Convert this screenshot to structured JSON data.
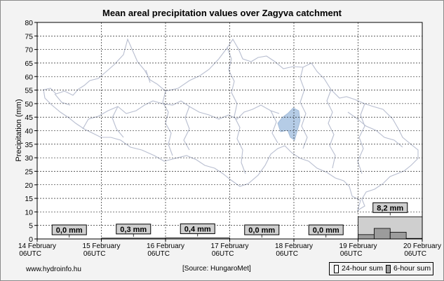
{
  "chart_data": {
    "type": "bar",
    "title": "Mean areal precipitation values over Zagyva catchment",
    "ylabel": "Precipitation (mm)",
    "ylim": [
      0,
      80
    ],
    "yticks": [
      0,
      5,
      10,
      15,
      20,
      25,
      30,
      35,
      40,
      45,
      50,
      55,
      60,
      65,
      70,
      75,
      80
    ],
    "xticks": [
      {
        "line1": "14 February",
        "line2": "06UTC"
      },
      {
        "line1": "15 February",
        "line2": "06UTC"
      },
      {
        "line1": "16 February",
        "line2": "06UTC"
      },
      {
        "line1": "17 February",
        "line2": "06UTC"
      },
      {
        "line1": "18 February",
        "line2": "06UTC"
      },
      {
        "line1": "19 February",
        "line2": "06UTC"
      },
      {
        "line1": "20 February",
        "line2": "06UTC"
      }
    ],
    "series": [
      {
        "name": "24-hour sum",
        "values": [
          0.0,
          0.3,
          0.4,
          0.0,
          0.0,
          8.2
        ]
      },
      {
        "name": "6-hour sum",
        "values": [
          0,
          0,
          0,
          0,
          0,
          0,
          0,
          0,
          0,
          0,
          0,
          0,
          0,
          0,
          0,
          0,
          0,
          0,
          0,
          0,
          1.6,
          3.9,
          2.5,
          0.2
        ]
      }
    ],
    "daily_labels": [
      "0,0 mm",
      "0,3 mm",
      "0,4 mm",
      "0,0 mm",
      "0,0 mm",
      "8,2 mm"
    ],
    "grid": true,
    "colors": {
      "daily_fill": "#cfcfcf",
      "sixhour_fill": "#9c9c9c",
      "map_line": "#b8bed0",
      "lake": "#b5cce6"
    }
  },
  "footer": {
    "website": "www.hydroinfo.hu",
    "source": "[Source: HungaroMet]"
  }
}
